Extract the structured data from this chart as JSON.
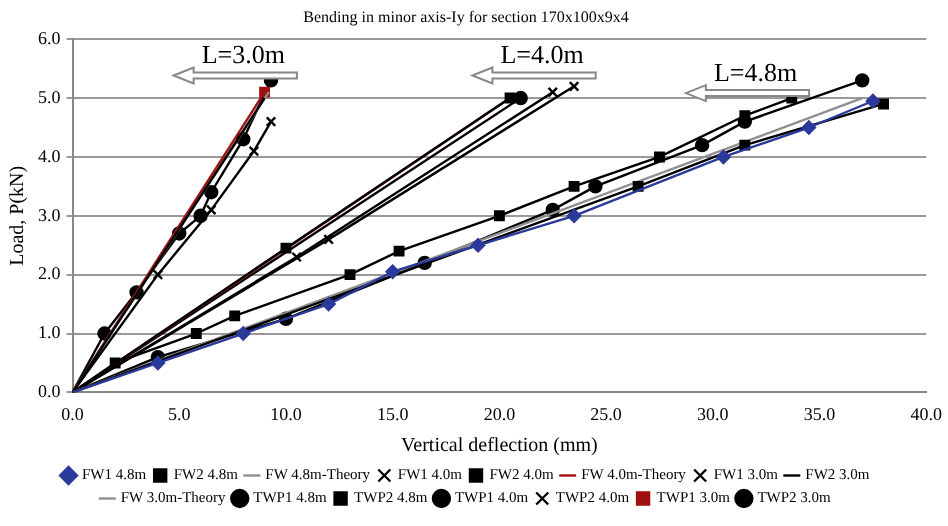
{
  "chart_data": {
    "type": "line",
    "title": "Bending in minor axis-Iy for section 170x100x9x4",
    "xlabel": "Vertical deflection (mm)",
    "ylabel": "Load, P(kN)",
    "xlim": [
      0,
      40
    ],
    "xticks": [
      {
        "value": 0,
        "label": "0.0"
      },
      {
        "value": 5,
        "label": "5.0"
      },
      {
        "value": 10,
        "label": "10.0"
      },
      {
        "value": 15,
        "label": "15.0"
      },
      {
        "value": 20,
        "label": "20.0"
      },
      {
        "value": 25,
        "label": "25.0"
      },
      {
        "value": 30,
        "label": "30.0"
      },
      {
        "value": 35,
        "label": "35.0"
      },
      {
        "value": 40,
        "label": "40.0"
      }
    ],
    "ylim": [
      0,
      6
    ],
    "yticks": [
      {
        "value": 0,
        "label": "0.0"
      },
      {
        "value": 1,
        "label": "1.0"
      },
      {
        "value": 2,
        "label": "2.0"
      },
      {
        "value": 3,
        "label": "3.0"
      },
      {
        "value": 4,
        "label": "4.0"
      },
      {
        "value": 5,
        "label": "5.0"
      },
      {
        "value": 6,
        "label": "6.0"
      }
    ],
    "grid": "y",
    "legend": "bottom",
    "annotations": [
      "L=3.0m",
      "L=4.0m",
      "L=4.8m"
    ],
    "series": [
      {
        "name": "FW1 4.8m",
        "color": "#2b3a9a",
        "marker": "diamond",
        "x": [
          0,
          4,
          8,
          12,
          15,
          19,
          23.5,
          30.5,
          34.5,
          37.5
        ],
        "values": [
          0,
          0.5,
          1.0,
          1.5,
          2.05,
          2.5,
          3.0,
          4.0,
          4.5,
          4.95
        ]
      },
      {
        "name": "FW2 4.8m",
        "color": "#000000",
        "marker": "square",
        "x": [
          0,
          26.5,
          31.5,
          38
        ],
        "values": [
          0,
          3.5,
          4.2,
          4.9
        ]
      },
      {
        "name": "FW 4.8m-Theory",
        "color": "#909090",
        "marker": "none",
        "x": [
          0,
          37
        ],
        "values": [
          0,
          5.0
        ]
      },
      {
        "name": "FW1 4.0m",
        "color": "#000000",
        "marker": "cross",
        "x": [
          0,
          12,
          23.5
        ],
        "values": [
          0,
          2.6,
          5.2
        ]
      },
      {
        "name": "FW2 4.0m",
        "color": "#000000",
        "marker": "square",
        "x": [
          0,
          10,
          20.5
        ],
        "values": [
          0,
          2.45,
          5.0
        ]
      },
      {
        "name": "FW 4.0m-Theory",
        "color": "#a01010",
        "marker": "none",
        "x": [
          0,
          20.5
        ],
        "values": [
          0,
          5.0
        ]
      },
      {
        "name": "FW1 3.0m",
        "color": "#000000",
        "marker": "cross",
        "x": [
          0,
          4,
          6.5,
          8.5,
          9.3
        ],
        "values": [
          0,
          2.0,
          3.1,
          4.1,
          4.6
        ]
      },
      {
        "name": "FW2 3.0m",
        "color": "#000000",
        "marker": "none",
        "x": [
          0,
          9
        ],
        "values": [
          0,
          5.0
        ]
      },
      {
        "name": "FW 3.0m-Theory",
        "color": "#909090",
        "marker": "none",
        "x": [
          0,
          9.2
        ],
        "values": [
          0,
          5.1
        ]
      },
      {
        "name": "TWP1 4.8m",
        "color": "#000000",
        "marker": "circle",
        "x": [
          0,
          4,
          10,
          16.5,
          22.5,
          24.5,
          29.5,
          31.5,
          37
        ],
        "values": [
          0,
          0.6,
          1.25,
          2.2,
          3.1,
          3.5,
          4.2,
          4.6,
          5.3
        ]
      },
      {
        "name": "TWP2 4.8m",
        "color": "#000000",
        "marker": "square",
        "x": [
          0,
          2,
          5.8,
          7.6,
          13,
          15.3,
          20,
          23.5,
          27.5,
          31.5,
          33.7
        ],
        "values": [
          0,
          0.5,
          1.0,
          1.3,
          2.0,
          2.4,
          3.0,
          3.5,
          4.0,
          4.7,
          5.0
        ]
      },
      {
        "name": "TWP1 4.0m",
        "color": "#000000",
        "marker": "circle",
        "x": [
          0,
          21
        ],
        "values": [
          0,
          5.0
        ]
      },
      {
        "name": "TWP2 4.0m",
        "color": "#000000",
        "marker": "cross",
        "x": [
          0,
          10.5,
          22.5
        ],
        "values": [
          0,
          2.3,
          5.1
        ]
      },
      {
        "name": "TWP1 3.0m",
        "color": "#a01010",
        "marker": "square",
        "x": [
          0,
          9
        ],
        "values": [
          0,
          5.1
        ]
      },
      {
        "name": "TWP2 3.0m",
        "color": "#000000",
        "marker": "circle",
        "x": [
          0,
          1.5,
          3,
          5,
          6,
          6.5,
          8,
          9.3
        ],
        "values": [
          0,
          1.0,
          1.7,
          2.7,
          3.0,
          3.4,
          4.3,
          5.3
        ]
      }
    ]
  }
}
